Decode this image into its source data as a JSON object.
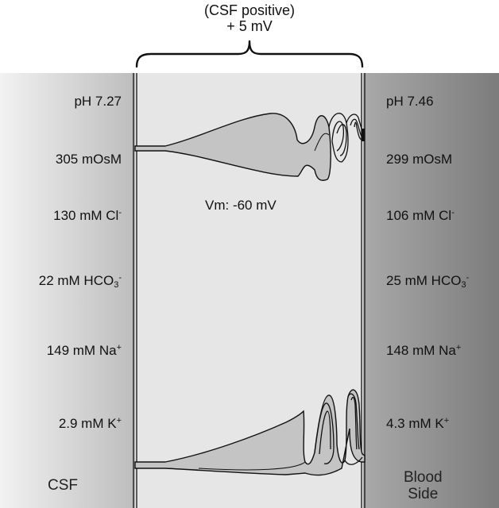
{
  "header": {
    "line1": "(CSF positive)",
    "line2": "+ 5 mV"
  },
  "cell": {
    "membrane_potential": "Vm: -60 mV"
  },
  "csf_side": {
    "name": "CSF",
    "ph": "pH 7.27",
    "osmolality": "305 mOsM",
    "chloride": {
      "value": "130 mM Cl",
      "charge": "-"
    },
    "bicarbonate": {
      "value": "22 mM HCO",
      "subscript": "3",
      "charge": "-"
    },
    "sodium": {
      "value": "149 mM Na",
      "charge": "+"
    },
    "potassium": {
      "value": "2.9 mM K",
      "charge": "+"
    }
  },
  "blood_side": {
    "name_line1": "Blood",
    "name_line2": "Side",
    "ph": "pH 7.46",
    "osmolality": "299 mOsM",
    "chloride": {
      "value": "106 mM Cl",
      "charge": "-"
    },
    "bicarbonate": {
      "value": "25 mM HCO",
      "subscript": "3",
      "charge": "-"
    },
    "sodium": {
      "value": "148 mM Na",
      "charge": "+"
    },
    "potassium": {
      "value": "4.3 mM K",
      "charge": "+"
    }
  },
  "colors": {
    "csf_gradient_start": "#f2f2f2",
    "csf_gradient_end": "#bdbdbd",
    "blood_gradient_start": "#a9a9a9",
    "blood_gradient_end": "#7c7c7c",
    "cell": "#e6e6e6",
    "pocket": "#c4c4c4"
  }
}
